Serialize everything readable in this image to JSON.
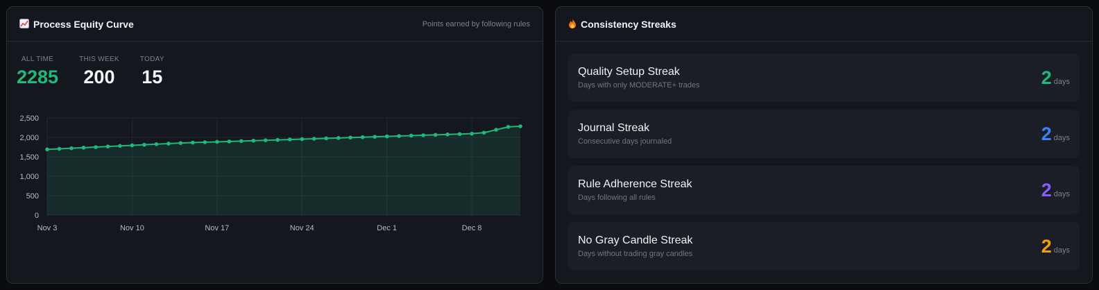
{
  "equity": {
    "title": "Process Equity Curve",
    "title_icon": "chart-increasing-icon",
    "subtitle": "Points earned by following rules",
    "stats": [
      {
        "label": "ALL TIME",
        "value": "2285",
        "color": "#22b87a"
      },
      {
        "label": "THIS WEEK",
        "value": "200",
        "color": "#f4f5f8"
      },
      {
        "label": "TODAY",
        "value": "15",
        "color": "#f4f5f8"
      }
    ]
  },
  "chart_data": {
    "type": "area",
    "title": "",
    "xlabel": "",
    "ylabel": "",
    "x_tick_labels": [
      "Nov 3",
      "Nov 10",
      "Nov 17",
      "Nov 24",
      "Dec 1",
      "Dec 8"
    ],
    "y_tick_labels": [
      "0",
      "500",
      "1,000",
      "1,500",
      "2,000",
      "2,500"
    ],
    "ylim": [
      0,
      2500
    ],
    "grid": true,
    "line_color": "#22b87a",
    "series": [
      {
        "x": [
          "Nov 3",
          "Nov 4",
          "Nov 5",
          "Nov 6",
          "Nov 7",
          "Nov 8",
          "Nov 9",
          "Nov 10",
          "Nov 11",
          "Nov 12",
          "Nov 13",
          "Nov 14",
          "Nov 15",
          "Nov 16",
          "Nov 17",
          "Nov 18",
          "Nov 19",
          "Nov 20",
          "Nov 21",
          "Nov 22",
          "Nov 23",
          "Nov 24",
          "Nov 25",
          "Nov 26",
          "Nov 27",
          "Nov 28",
          "Nov 29",
          "Nov 30",
          "Dec 1",
          "Dec 2",
          "Dec 3",
          "Dec 4",
          "Dec 5",
          "Dec 6",
          "Dec 7",
          "Dec 8",
          "Dec 9",
          "Dec 10",
          "Dec 11",
          "Dec 12"
        ],
        "values": [
          1690,
          1705,
          1720,
          1735,
          1750,
          1765,
          1780,
          1795,
          1810,
          1825,
          1840,
          1855,
          1865,
          1875,
          1885,
          1895,
          1905,
          1915,
          1925,
          1935,
          1945,
          1955,
          1965,
          1975,
          1985,
          1995,
          2005,
          2015,
          2025,
          2035,
          2045,
          2055,
          2065,
          2075,
          2085,
          2095,
          2120,
          2195,
          2270,
          2285
        ]
      }
    ]
  },
  "streaks": {
    "title": "Consistency Streaks",
    "title_icon": "fire-icon",
    "unit": "days",
    "items": [
      {
        "name": "Quality Setup Streak",
        "desc": "Days with only MODERATE+ trades",
        "count": "2",
        "color": "#22b87a"
      },
      {
        "name": "Journal Streak",
        "desc": "Consecutive days journaled",
        "count": "2",
        "color": "#3b82f6"
      },
      {
        "name": "Rule Adherence Streak",
        "desc": "Days following all rules",
        "count": "2",
        "color": "#8b5cf6"
      },
      {
        "name": "No Gray Candle Streak",
        "desc": "Days without trading gray candles",
        "count": "2",
        "color": "#f59e0b"
      }
    ]
  }
}
